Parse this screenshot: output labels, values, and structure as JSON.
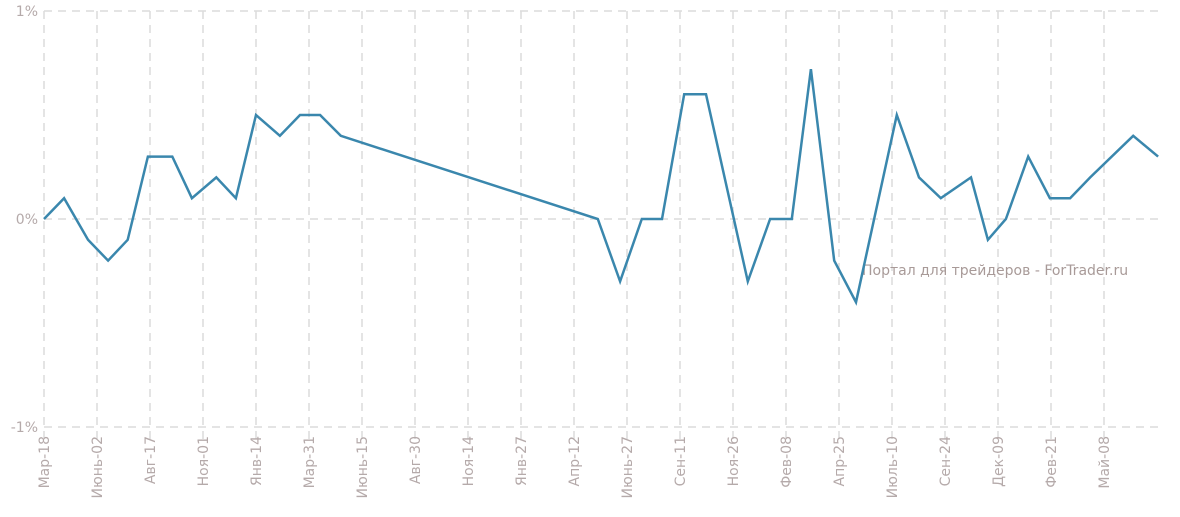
{
  "chart_data": {
    "type": "line",
    "title": "",
    "xlabel": "",
    "ylabel": "",
    "ylim": [
      -1,
      1
    ],
    "grid": true,
    "y_ticks": [
      {
        "value": 1,
        "label": "1%"
      },
      {
        "value": 0,
        "label": "0%"
      },
      {
        "value": -1,
        "label": "-1%"
      }
    ],
    "x_tick_labels": [
      "Мар-18",
      "Июнь-02",
      "Авг-17",
      "Ноя-01",
      "Янв-14",
      "Мар-31",
      "Июнь-15",
      "Авг-30",
      "Ноя-14",
      "Янв-27",
      "Апр-12",
      "Июнь-27",
      "Сен-11",
      "Ноя-26",
      "Фев-08",
      "Апр-25",
      "Июль-10",
      "Сен-24",
      "Дек-09",
      "Фев-21",
      "Май-08"
    ],
    "x_note": "x values expressed in tick-label index units",
    "xlim": [
      0,
      21.02
    ],
    "series": [
      {
        "name": "series",
        "color": "#3a87ad",
        "x": [
          0,
          0.38,
          0.83,
          1.21,
          1.58,
          1.96,
          2.42,
          2.79,
          3.25,
          3.62,
          4.0,
          4.45,
          4.83,
          5.21,
          5.6,
          10.45,
          10.87,
          11.28,
          11.66,
          12.08,
          12.49,
          13.28,
          13.7,
          14.11,
          14.47,
          14.91,
          15.32,
          16.09,
          16.51,
          16.92,
          17.49,
          17.81,
          18.15,
          18.57,
          18.98,
          19.36,
          19.74,
          20.55,
          21.02
        ],
        "y": [
          0,
          0.1,
          -0.1,
          -0.2,
          -0.1,
          0.3,
          0.3,
          0.1,
          0.2,
          0.1,
          0.5,
          0.4,
          0.5,
          0.5,
          0.4,
          0,
          -0.3,
          0,
          0,
          0.6,
          0.6,
          -0.3,
          0,
          0,
          0.72,
          -0.2,
          -0.4,
          0.5,
          0.2,
          0.1,
          0.2,
          -0.1,
          0,
          0.3,
          0.1,
          0.1,
          0.2,
          0.4,
          0.3
        ]
      }
    ],
    "annotation": "Портал для трейдеров - ForTrader.ru"
  }
}
